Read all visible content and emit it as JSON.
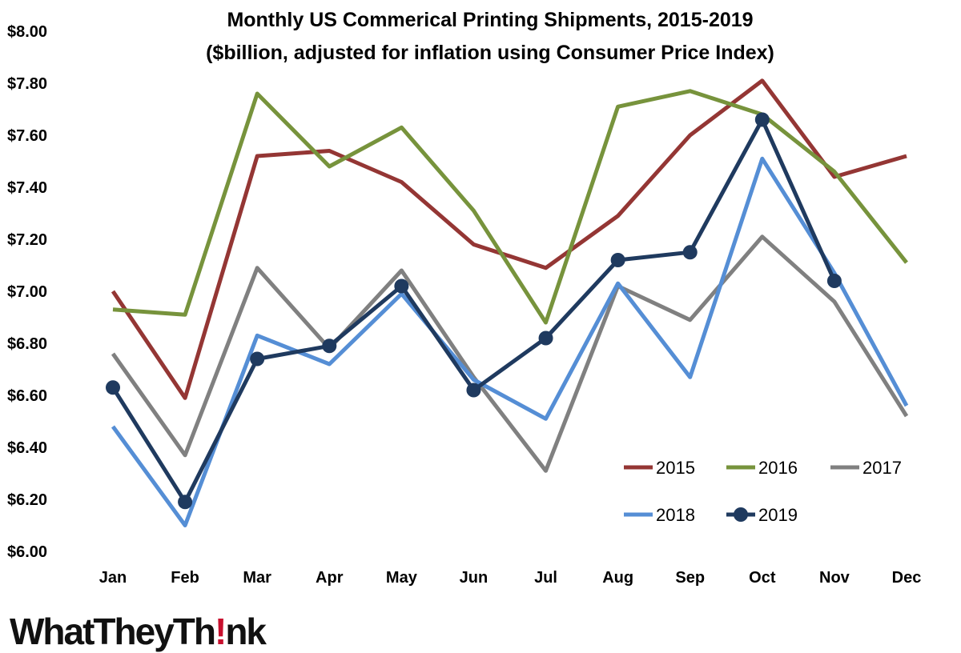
{
  "chart_data": {
    "type": "line",
    "title": "Monthly US Commerical Printing Shipments, 2015-2019",
    "subtitle": "($billion, adjusted for inflation using Consumer Price Index)",
    "xlabel": "",
    "ylabel": "",
    "categories": [
      "Jan",
      "Feb",
      "Mar",
      "Apr",
      "May",
      "Jun",
      "Jul",
      "Aug",
      "Sep",
      "Oct",
      "Nov",
      "Dec"
    ],
    "ylim": [
      6.0,
      8.0
    ],
    "yticks": [
      6.0,
      6.2,
      6.4,
      6.6,
      6.8,
      7.0,
      7.2,
      7.4,
      7.6,
      7.8,
      8.0
    ],
    "ytick_labels": [
      "$6.00",
      "$6.20",
      "$6.40",
      "$6.60",
      "$6.80",
      "$7.00",
      "$7.20",
      "$7.40",
      "$7.60",
      "$7.80",
      "$8.00"
    ],
    "grid": false,
    "legend_position": "bottom-right",
    "series": [
      {
        "name": "2015",
        "color": "#943634",
        "markers": false,
        "values": [
          7.0,
          6.59,
          7.52,
          7.54,
          7.42,
          7.18,
          7.09,
          7.29,
          7.6,
          7.81,
          7.44,
          7.52
        ]
      },
      {
        "name": "2016",
        "color": "#77933c",
        "markers": false,
        "values": [
          6.93,
          6.91,
          7.76,
          7.48,
          7.63,
          7.31,
          6.88,
          7.71,
          7.77,
          7.68,
          7.46,
          7.11
        ]
      },
      {
        "name": "2017",
        "color": "#808080",
        "markers": false,
        "values": [
          6.76,
          6.37,
          7.09,
          6.78,
          7.08,
          6.67,
          6.31,
          7.02,
          6.89,
          7.21,
          6.96,
          6.52
        ]
      },
      {
        "name": "2018",
        "color": "#558ed5",
        "markers": false,
        "values": [
          6.48,
          6.1,
          6.83,
          6.72,
          6.99,
          6.66,
          6.51,
          7.03,
          6.67,
          7.51,
          7.07,
          6.56
        ]
      },
      {
        "name": "2019",
        "color": "#1f3a5f",
        "markers": true,
        "values": [
          6.63,
          6.19,
          6.74,
          6.79,
          7.02,
          6.62,
          6.82,
          7.12,
          7.15,
          7.66,
          7.04,
          null
        ]
      }
    ]
  },
  "logo": {
    "text_before": "WhatTheyTh",
    "text_mark": "!",
    "text_after": "nk"
  }
}
